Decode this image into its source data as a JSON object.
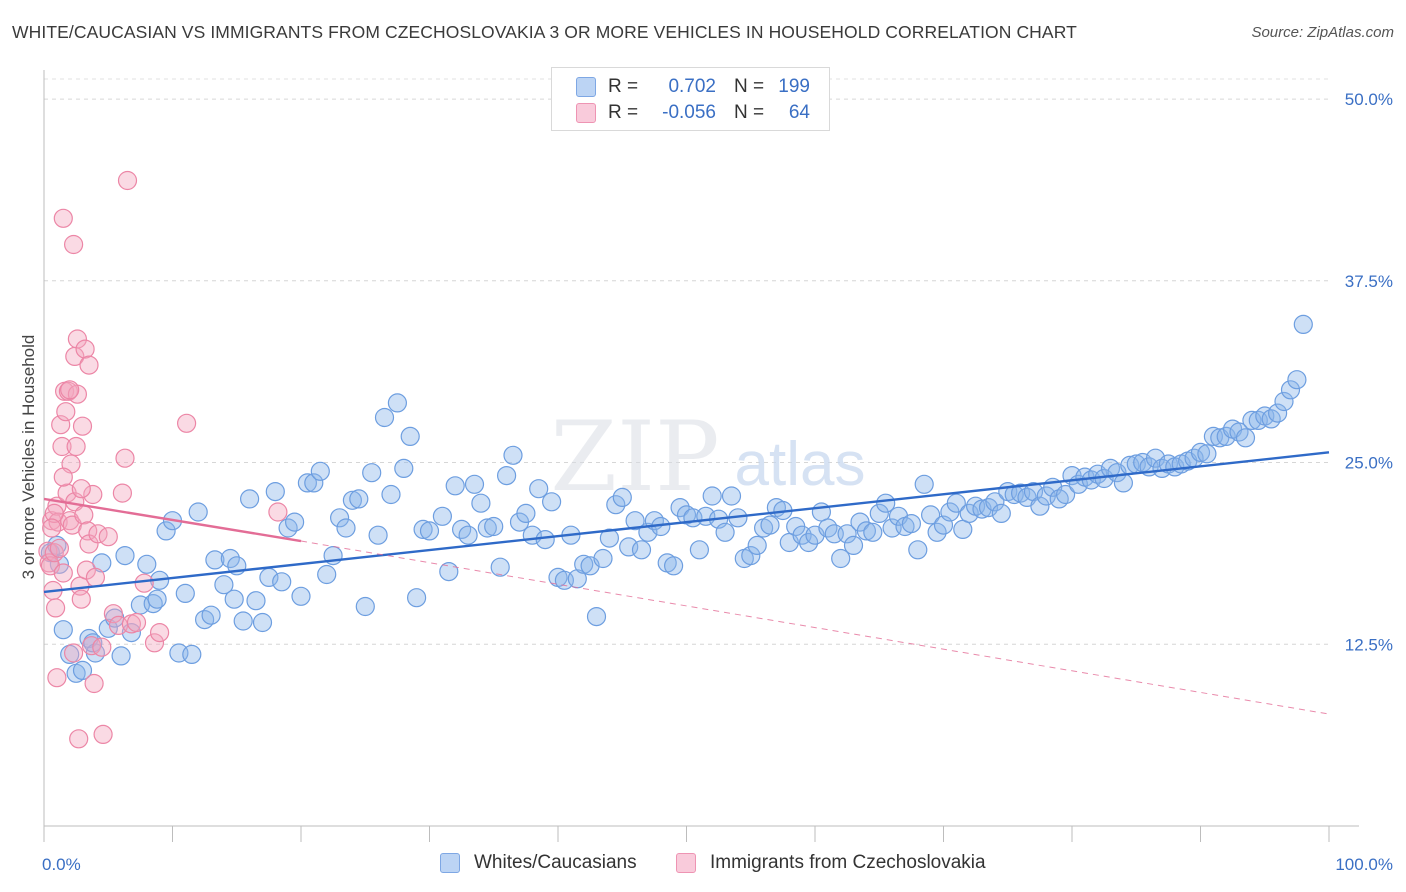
{
  "header": {
    "title": "WHITE/CAUCASIAN VS IMMIGRANTS FROM CZECHOSLOVAKIA 3 OR MORE VEHICLES IN HOUSEHOLD CORRELATION CHART",
    "source": "Source: ZipAtlas.com"
  },
  "legend": {
    "rows": [
      {
        "r_label": "R =",
        "r_value": "0.702",
        "n_label": "N =",
        "n_value": "199"
      },
      {
        "r_label": "R =",
        "r_value": "-0.056",
        "n_label": "N =",
        "n_value": "64"
      }
    ]
  },
  "watermark": {
    "zip": "ZIP",
    "atlas": "atlas"
  },
  "chart_data": {
    "type": "scatter",
    "ylabel": "3 or more Vehicles in Household",
    "xlim": [
      0,
      100
    ],
    "ylim": [
      0,
      52
    ],
    "x_tick_labels": {
      "left": "0.0%",
      "right": "100.0%"
    },
    "y_ticks": [
      {
        "value": 12.5,
        "label": "12.5%"
      },
      {
        "value": 25.0,
        "label": "25.0%"
      },
      {
        "value": 37.5,
        "label": "37.5%"
      },
      {
        "value": 50.0,
        "label": "50.0%"
      }
    ],
    "grid": "horizontal-dashed",
    "legend_position": "top-center",
    "series": [
      {
        "name": "Whites/Caucasians",
        "color": "#8ab4ea",
        "stroke": "#6d9ee0",
        "trend": {
          "x0": 0,
          "y0": 16.1,
          "x1": 100,
          "y1": 25.7,
          "color": "#2f6ac8"
        },
        "points": [
          [
            0.5,
            18.8
          ],
          [
            1,
            19.3
          ],
          [
            1.5,
            13.5
          ],
          [
            2,
            11.8
          ],
          [
            2.5,
            10.5
          ],
          [
            3,
            10.7
          ],
          [
            3.5,
            12.9
          ],
          [
            4,
            11.9
          ],
          [
            4.5,
            18.1
          ],
          [
            5,
            13.6
          ],
          [
            5.5,
            14.3
          ],
          [
            6,
            11.7
          ],
          [
            6.3,
            18.6
          ],
          [
            6.8,
            13.3
          ],
          [
            7.5,
            15.2
          ],
          [
            8,
            18.0
          ],
          [
            8.5,
            15.3
          ],
          [
            9,
            16.9
          ],
          [
            9.5,
            20.3
          ],
          [
            10,
            21.0
          ],
          [
            10.5,
            11.9
          ],
          [
            11,
            16.0
          ],
          [
            11.5,
            11.8
          ],
          [
            12,
            21.6
          ],
          [
            12.5,
            14.2
          ],
          [
            13,
            14.5
          ],
          [
            13.3,
            18.3
          ],
          [
            14,
            16.6
          ],
          [
            14.5,
            18.4
          ],
          [
            15,
            17.9
          ],
          [
            15.5,
            14.1
          ],
          [
            16,
            22.5
          ],
          [
            16.5,
            15.5
          ],
          [
            17,
            14.0
          ],
          [
            17.5,
            17.1
          ],
          [
            18,
            23.0
          ],
          [
            18.5,
            16.8
          ],
          [
            19,
            20.5
          ],
          [
            19.5,
            20.9
          ],
          [
            20,
            15.8
          ],
          [
            20.5,
            23.6
          ],
          [
            21,
            23.6
          ],
          [
            21.5,
            24.4
          ],
          [
            22,
            17.3
          ],
          [
            22.5,
            18.6
          ],
          [
            23,
            21.2
          ],
          [
            23.5,
            20.5
          ],
          [
            24,
            22.4
          ],
          [
            24.5,
            22.5
          ],
          [
            25,
            15.1
          ],
          [
            25.5,
            24.3
          ],
          [
            26,
            20.0
          ],
          [
            26.5,
            28.1
          ],
          [
            27,
            22.8
          ],
          [
            27.5,
            29.1
          ],
          [
            28,
            24.6
          ],
          [
            28.5,
            26.8
          ],
          [
            29,
            15.7
          ],
          [
            29.5,
            20.4
          ],
          [
            30,
            20.3
          ],
          [
            31,
            21.3
          ],
          [
            31.5,
            17.5
          ],
          [
            32,
            23.4
          ],
          [
            32.5,
            20.4
          ],
          [
            33,
            20.0
          ],
          [
            33.5,
            23.5
          ],
          [
            34,
            22.2
          ],
          [
            34.5,
            20.5
          ],
          [
            35,
            20.6
          ],
          [
            35.5,
            17.8
          ],
          [
            36,
            24.1
          ],
          [
            36.5,
            25.5
          ],
          [
            37,
            20.9
          ],
          [
            37.5,
            21.5
          ],
          [
            38,
            20.0
          ],
          [
            38.5,
            23.2
          ],
          [
            39,
            19.7
          ],
          [
            39.5,
            22.3
          ],
          [
            40,
            17.1
          ],
          [
            40.5,
            16.9
          ],
          [
            41,
            20.0
          ],
          [
            41.5,
            17.0
          ],
          [
            42,
            18.0
          ],
          [
            42.5,
            17.9
          ],
          [
            43,
            14.4
          ],
          [
            43.5,
            18.4
          ],
          [
            44,
            19.8
          ],
          [
            44.5,
            22.1
          ],
          [
            45,
            22.6
          ],
          [
            45.5,
            19.2
          ],
          [
            46,
            21.0
          ],
          [
            46.5,
            19.0
          ],
          [
            47,
            20.2
          ],
          [
            47.5,
            21.0
          ],
          [
            48,
            20.6
          ],
          [
            48.5,
            18.1
          ],
          [
            49,
            17.9
          ],
          [
            49.5,
            21.9
          ],
          [
            50,
            21.4
          ],
          [
            50.5,
            21.2
          ],
          [
            51,
            19.0
          ],
          [
            51.5,
            21.3
          ],
          [
            52,
            22.7
          ],
          [
            52.5,
            21.1
          ],
          [
            53,
            20.2
          ],
          [
            53.5,
            22.7
          ],
          [
            54,
            21.2
          ],
          [
            54.5,
            18.4
          ],
          [
            55,
            18.6
          ],
          [
            55.5,
            19.3
          ],
          [
            56,
            20.5
          ],
          [
            56.5,
            20.7
          ],
          [
            57,
            21.9
          ],
          [
            57.5,
            21.7
          ],
          [
            58,
            19.5
          ],
          [
            58.5,
            20.6
          ],
          [
            59,
            20.0
          ],
          [
            59.5,
            19.5
          ],
          [
            60,
            20.0
          ],
          [
            60.5,
            21.6
          ],
          [
            61,
            20.5
          ],
          [
            61.5,
            20.1
          ],
          [
            62,
            18.4
          ],
          [
            62.5,
            20.1
          ],
          [
            63,
            19.3
          ],
          [
            63.5,
            20.9
          ],
          [
            64,
            20.3
          ],
          [
            64.5,
            20.2
          ],
          [
            65,
            21.5
          ],
          [
            65.5,
            22.2
          ],
          [
            66,
            20.5
          ],
          [
            66.5,
            21.3
          ],
          [
            67,
            20.6
          ],
          [
            67.5,
            20.8
          ],
          [
            68,
            19.0
          ],
          [
            68.5,
            23.5
          ],
          [
            69,
            21.4
          ],
          [
            69.5,
            20.2
          ],
          [
            70,
            20.7
          ],
          [
            70.5,
            21.6
          ],
          [
            71,
            22.2
          ],
          [
            71.5,
            20.4
          ],
          [
            72,
            21.5
          ],
          [
            72.5,
            22.0
          ],
          [
            73,
            21.8
          ],
          [
            73.5,
            21.9
          ],
          [
            74,
            22.3
          ],
          [
            74.5,
            21.5
          ],
          [
            75,
            23.0
          ],
          [
            75.5,
            22.8
          ],
          [
            76,
            22.9
          ],
          [
            76.5,
            22.6
          ],
          [
            77,
            23.0
          ],
          [
            77.5,
            22.0
          ],
          [
            78,
            22.7
          ],
          [
            78.5,
            23.3
          ],
          [
            79,
            22.5
          ],
          [
            79.5,
            22.8
          ],
          [
            80,
            24.1
          ],
          [
            80.5,
            23.5
          ],
          [
            81,
            24.0
          ],
          [
            81.5,
            23.8
          ],
          [
            82,
            24.2
          ],
          [
            82.5,
            23.9
          ],
          [
            83,
            24.6
          ],
          [
            83.5,
            24.3
          ],
          [
            84,
            23.6
          ],
          [
            84.5,
            24.8
          ],
          [
            85,
            24.9
          ],
          [
            85.5,
            25.0
          ],
          [
            86,
            24.7
          ],
          [
            86.5,
            25.3
          ],
          [
            87,
            24.6
          ],
          [
            87.5,
            24.9
          ],
          [
            88,
            24.7
          ],
          [
            88.5,
            24.9
          ],
          [
            89,
            25.1
          ],
          [
            89.5,
            25.3
          ],
          [
            90,
            25.7
          ],
          [
            90.5,
            25.6
          ],
          [
            91,
            26.8
          ],
          [
            91.5,
            26.7
          ],
          [
            92,
            26.8
          ],
          [
            92.5,
            27.3
          ],
          [
            93,
            27.1
          ],
          [
            93.5,
            26.7
          ],
          [
            94,
            27.9
          ],
          [
            94.5,
            27.9
          ],
          [
            95,
            28.2
          ],
          [
            95.5,
            28.0
          ],
          [
            96,
            28.4
          ],
          [
            96.5,
            29.2
          ],
          [
            97,
            30.0
          ],
          [
            97.5,
            30.7
          ],
          [
            98,
            34.5
          ],
          [
            1.2,
            18.0
          ],
          [
            3.8,
            12.6
          ],
          [
            8.8,
            15.6
          ],
          [
            14.8,
            15.6
          ]
        ]
      },
      {
        "name": "Immigrants from Czechoslovakia",
        "color": "#f4a6bf",
        "stroke": "#ec86a6",
        "trend": {
          "x0": 0,
          "y0": 22.5,
          "x1": 20,
          "y1": 19.6,
          "dash_x1": 100,
          "dash_y1": 7.7,
          "color": "#e36d96"
        },
        "points": [
          [
            0.3,
            18.9
          ],
          [
            0.4,
            18.1
          ],
          [
            0.5,
            17.9
          ],
          [
            0.6,
            21.0
          ],
          [
            0.7,
            16.2
          ],
          [
            0.8,
            18.8
          ],
          [
            0.9,
            15.0
          ],
          [
            1.0,
            22.0
          ],
          [
            1.0,
            10.2
          ],
          [
            1.1,
            20.9
          ],
          [
            1.2,
            19.1
          ],
          [
            1.3,
            27.6
          ],
          [
            1.4,
            26.1
          ],
          [
            1.5,
            41.8
          ],
          [
            1.5,
            17.4
          ],
          [
            1.6,
            29.9
          ],
          [
            1.7,
            28.5
          ],
          [
            1.8,
            22.9
          ],
          [
            1.9,
            29.9
          ],
          [
            2.0,
            21.0
          ],
          [
            2.1,
            24.9
          ],
          [
            2.2,
            20.7
          ],
          [
            2.3,
            40.0
          ],
          [
            2.3,
            11.9
          ],
          [
            2.4,
            22.3
          ],
          [
            2.4,
            32.3
          ],
          [
            2.5,
            26.1
          ],
          [
            2.6,
            33.5
          ],
          [
            2.6,
            29.7
          ],
          [
            2.7,
            6.0
          ],
          [
            2.8,
            16.5
          ],
          [
            2.9,
            15.6
          ],
          [
            3.0,
            27.5
          ],
          [
            3.1,
            21.4
          ],
          [
            3.2,
            32.8
          ],
          [
            3.3,
            17.6
          ],
          [
            3.4,
            20.3
          ],
          [
            3.5,
            31.7
          ],
          [
            3.5,
            19.4
          ],
          [
            3.7,
            12.4
          ],
          [
            3.8,
            22.8
          ],
          [
            3.9,
            9.8
          ],
          [
            4.0,
            17.1
          ],
          [
            4.2,
            20.1
          ],
          [
            4.5,
            12.3
          ],
          [
            4.6,
            6.3
          ],
          [
            5.0,
            19.9
          ],
          [
            5.4,
            14.6
          ],
          [
            5.8,
            13.8
          ],
          [
            6.1,
            22.9
          ],
          [
            6.3,
            25.3
          ],
          [
            6.5,
            44.4
          ],
          [
            6.8,
            13.9
          ],
          [
            7.2,
            14.0
          ],
          [
            7.8,
            16.7
          ],
          [
            8.6,
            12.6
          ],
          [
            9.0,
            13.3
          ],
          [
            11.1,
            27.7
          ],
          [
            18.2,
            21.6
          ],
          [
            0.8,
            21.5
          ],
          [
            1.5,
            24.0
          ],
          [
            2.0,
            30.0
          ],
          [
            2.9,
            23.2
          ],
          [
            0.6,
            20.5
          ]
        ]
      }
    ]
  },
  "bottom_legend": {
    "items": [
      {
        "label": "Whites/Caucasians"
      },
      {
        "label": "Immigrants from Czechoslovakia"
      }
    ]
  }
}
